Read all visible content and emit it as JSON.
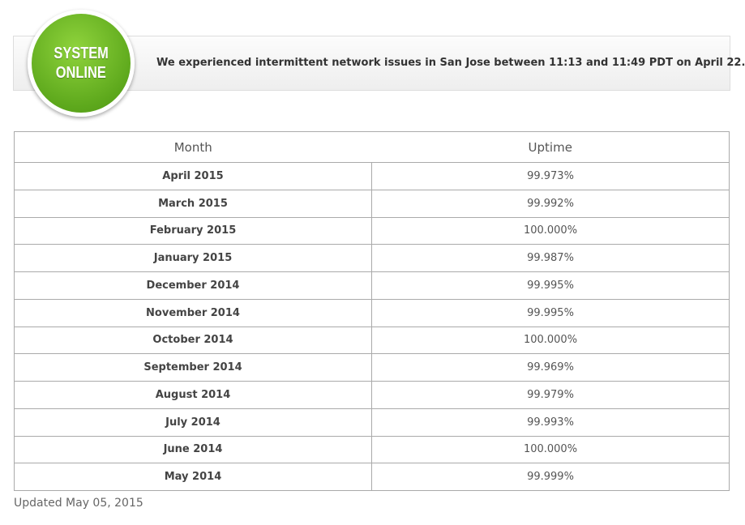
{
  "banner": {
    "badge": [
      "SYSTEM",
      "ONLINE"
    ],
    "message": "We experienced intermittent network issues in San Jose between 11:13 and 11:49 PDT on April 22."
  },
  "table": {
    "headers": [
      "Month",
      "Uptime"
    ],
    "rows": [
      [
        "April 2015",
        "99.973%"
      ],
      [
        "March 2015",
        "99.992%"
      ],
      [
        "February 2015",
        "100.000%"
      ],
      [
        "January 2015",
        "99.987%"
      ],
      [
        "December 2014",
        "99.995%"
      ],
      [
        "November 2014",
        "99.995%"
      ],
      [
        "October 2014",
        "100.000%"
      ],
      [
        "September 2014",
        "99.969%"
      ],
      [
        "August 2014",
        "99.979%"
      ],
      [
        "July 2014",
        "99.993%"
      ],
      [
        "June 2014",
        "100.000%"
      ],
      [
        "May 2014",
        "99.999%"
      ]
    ]
  },
  "footer": {
    "updated": "Updated May 05, 2015"
  }
}
